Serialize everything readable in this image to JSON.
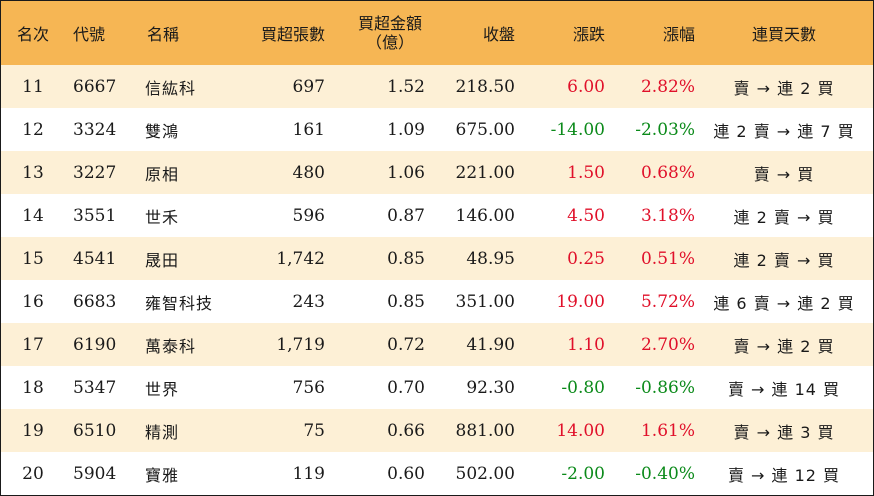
{
  "colors": {
    "header_bg": "#f6b654",
    "odd_row_bg": "#fdf0d6",
    "even_row_bg": "#ffffff",
    "up": "#e0102a",
    "down": "#0b8a1a"
  },
  "header": {
    "rank": "名次",
    "code": "代號",
    "name": "名稱",
    "volume": "買超張數",
    "amount_line1": "買超金額",
    "amount_line2": "（億）",
    "close": "收盤",
    "change": "漲跌",
    "pct": "漲幅",
    "days": "連買天數"
  },
  "rows": [
    {
      "rank": "11",
      "code": "6667",
      "name": "信紘科",
      "volume": "697",
      "amount": "1.52",
      "close": "218.50",
      "change": "6.00",
      "pct": "2.82%",
      "days": "賣 → 連 2 買",
      "dir": "up"
    },
    {
      "rank": "12",
      "code": "3324",
      "name": "雙鴻",
      "volume": "161",
      "amount": "1.09",
      "close": "675.00",
      "change": "-14.00",
      "pct": "-2.03%",
      "days": "連 2 賣 → 連 7 買",
      "dir": "down"
    },
    {
      "rank": "13",
      "code": "3227",
      "name": "原相",
      "volume": "480",
      "amount": "1.06",
      "close": "221.00",
      "change": "1.50",
      "pct": "0.68%",
      "days": "賣 → 買",
      "dir": "up"
    },
    {
      "rank": "14",
      "code": "3551",
      "name": "世禾",
      "volume": "596",
      "amount": "0.87",
      "close": "146.00",
      "change": "4.50",
      "pct": "3.18%",
      "days": "連 2 賣 → 買",
      "dir": "up"
    },
    {
      "rank": "15",
      "code": "4541",
      "name": "晟田",
      "volume": "1,742",
      "amount": "0.85",
      "close": "48.95",
      "change": "0.25",
      "pct": "0.51%",
      "days": "連 2 賣 → 買",
      "dir": "up"
    },
    {
      "rank": "16",
      "code": "6683",
      "name": "雍智科技",
      "volume": "243",
      "amount": "0.85",
      "close": "351.00",
      "change": "19.00",
      "pct": "5.72%",
      "days": "連 6 賣 → 連 2 買",
      "dir": "up"
    },
    {
      "rank": "17",
      "code": "6190",
      "name": "萬泰科",
      "volume": "1,719",
      "amount": "0.72",
      "close": "41.90",
      "change": "1.10",
      "pct": "2.70%",
      "days": "賣 → 連 2 買",
      "dir": "up"
    },
    {
      "rank": "18",
      "code": "5347",
      "name": "世界",
      "volume": "756",
      "amount": "0.70",
      "close": "92.30",
      "change": "-0.80",
      "pct": "-0.86%",
      "days": "賣 → 連 14 買",
      "dir": "down"
    },
    {
      "rank": "19",
      "code": "6510",
      "name": "精測",
      "volume": "75",
      "amount": "0.66",
      "close": "881.00",
      "change": "14.00",
      "pct": "1.61%",
      "days": "賣 → 連 3 買",
      "dir": "up"
    },
    {
      "rank": "20",
      "code": "5904",
      "name": "寶雅",
      "volume": "119",
      "amount": "0.60",
      "close": "502.00",
      "change": "-2.00",
      "pct": "-0.40%",
      "days": "賣 → 連 12 買",
      "dir": "down"
    }
  ]
}
